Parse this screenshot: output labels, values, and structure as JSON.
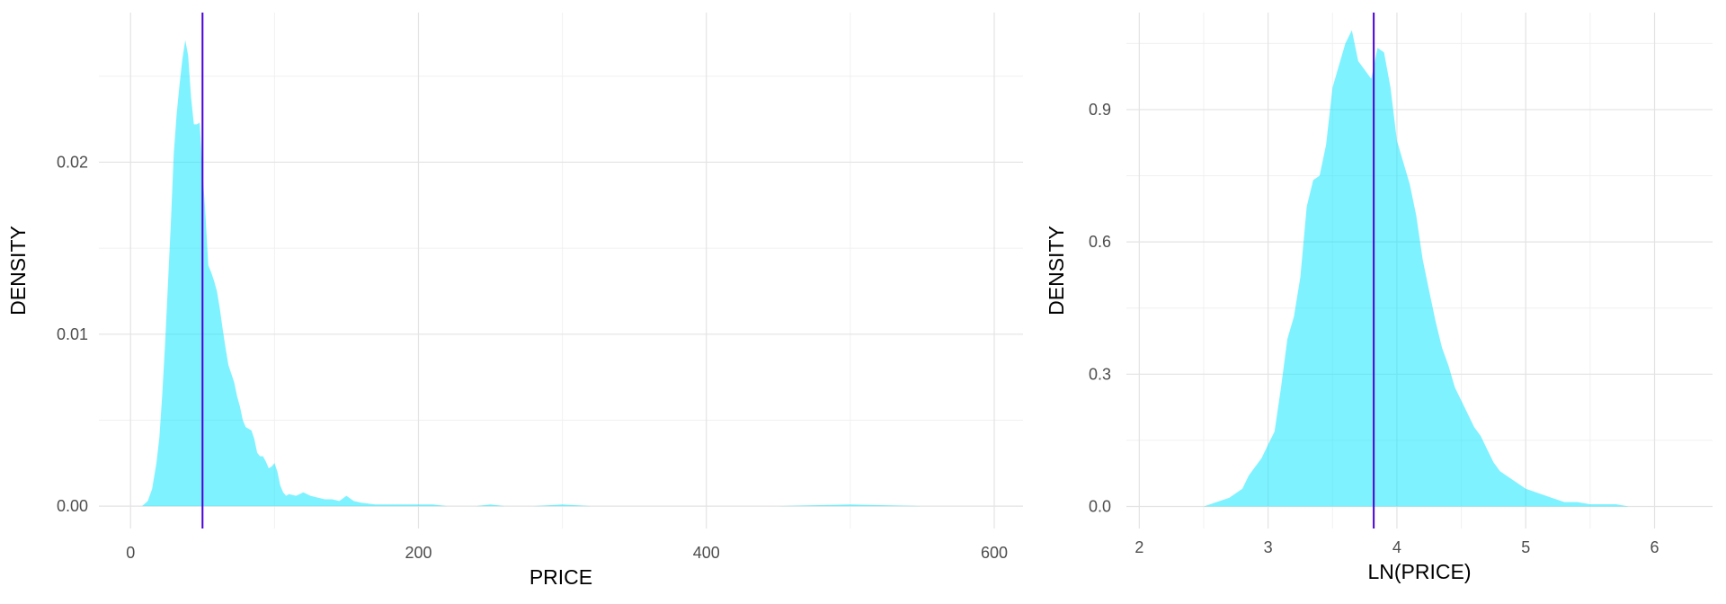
{
  "chart_data": [
    {
      "type": "area",
      "title": "",
      "xlabel": "PRICE",
      "ylabel": "DENSITY",
      "xlim": [
        -22,
        620
      ],
      "ylim": [
        -0.0013,
        0.0287
      ],
      "x_ticks": [
        0,
        200,
        400,
        600
      ],
      "y_ticks": [
        0.0,
        0.01,
        0.02
      ],
      "x_tick_labels": [
        "0",
        "200",
        "400",
        "600"
      ],
      "y_tick_labels": [
        "0.00",
        "0.01",
        "0.02"
      ],
      "grid": true,
      "fill_color": "#00e5ff",
      "vline": {
        "x": 50,
        "color": "#4b00d9"
      },
      "series": [
        {
          "x": [
            8,
            12,
            15,
            18,
            20,
            22,
            24,
            26,
            28,
            30,
            32,
            34,
            36,
            38,
            40,
            42,
            44,
            46,
            48,
            50,
            52,
            54,
            56,
            58,
            60,
            62,
            64,
            66,
            68,
            70,
            72,
            74,
            76,
            78,
            80,
            82,
            84,
            86,
            88,
            90,
            92,
            94,
            96,
            98,
            100,
            102,
            104,
            106,
            108,
            110,
            115,
            120,
            125,
            130,
            135,
            140,
            145,
            150,
            155,
            160,
            170,
            180,
            190,
            200,
            210,
            220,
            240,
            250,
            260,
            280,
            300,
            320,
            350,
            400,
            450,
            500,
            550,
            600
          ],
          "y": [
            0.0,
            0.0003,
            0.001,
            0.0025,
            0.004,
            0.0065,
            0.0095,
            0.013,
            0.0165,
            0.0205,
            0.0228,
            0.0245,
            0.026,
            0.0271,
            0.0262,
            0.0238,
            0.0222,
            0.0222,
            0.0223,
            0.0195,
            0.017,
            0.014,
            0.0136,
            0.0131,
            0.0125,
            0.0115,
            0.0103,
            0.0092,
            0.0082,
            0.0077,
            0.0072,
            0.0064,
            0.0058,
            0.005,
            0.0046,
            0.0045,
            0.0044,
            0.0039,
            0.0031,
            0.0029,
            0.0029,
            0.0026,
            0.0022,
            0.0023,
            0.0025,
            0.002,
            0.0012,
            0.0008,
            0.0006,
            0.0007,
            0.0006,
            0.0008,
            0.0006,
            0.0005,
            0.0004,
            0.0004,
            0.0003,
            0.0006,
            0.0003,
            0.0002,
            0.0001,
            0.0001,
            0.0001,
            0.0001,
            0.0001,
            0.0,
            0.0,
            0.0001,
            0.0,
            0.0,
            0.0001,
            0.0,
            0.0,
            0.0,
            0.0,
            0.0001,
            0.0,
            0.0
          ]
        }
      ]
    },
    {
      "type": "area",
      "title": "",
      "xlabel": "LN(PRICE)",
      "ylabel": "DENSITY",
      "xlim": [
        1.9,
        6.45
      ],
      "ylim": [
        -0.05,
        1.12
      ],
      "x_ticks": [
        2,
        3,
        4,
        5,
        6
      ],
      "y_ticks": [
        0.0,
        0.3,
        0.6,
        0.9
      ],
      "x_tick_labels": [
        "2",
        "3",
        "4",
        "5",
        "6"
      ],
      "y_tick_labels": [
        "0.0",
        "0.3",
        "0.6",
        "0.9"
      ],
      "grid": true,
      "fill_color": "#00e5ff",
      "vline": {
        "x": 3.82,
        "color": "#4b00d9"
      },
      "series": [
        {
          "x": [
            2.5,
            2.6,
            2.7,
            2.8,
            2.85,
            2.9,
            2.95,
            3.0,
            3.05,
            3.1,
            3.15,
            3.2,
            3.25,
            3.3,
            3.35,
            3.4,
            3.45,
            3.5,
            3.55,
            3.6,
            3.65,
            3.7,
            3.75,
            3.8,
            3.85,
            3.9,
            3.95,
            4.0,
            4.05,
            4.1,
            4.15,
            4.2,
            4.25,
            4.3,
            4.35,
            4.4,
            4.45,
            4.5,
            4.55,
            4.6,
            4.65,
            4.7,
            4.75,
            4.8,
            4.85,
            4.9,
            5.0,
            5.1,
            5.2,
            5.3,
            5.4,
            5.5,
            5.6,
            5.7,
            5.8,
            5.9,
            6.0,
            6.1,
            6.2,
            6.3
          ],
          "y": [
            0.0,
            0.01,
            0.02,
            0.04,
            0.07,
            0.09,
            0.11,
            0.14,
            0.17,
            0.27,
            0.38,
            0.43,
            0.52,
            0.68,
            0.74,
            0.75,
            0.82,
            0.95,
            1.0,
            1.05,
            1.08,
            1.01,
            0.99,
            0.97,
            1.04,
            1.03,
            0.95,
            0.83,
            0.78,
            0.73,
            0.66,
            0.56,
            0.49,
            0.42,
            0.36,
            0.32,
            0.27,
            0.24,
            0.21,
            0.18,
            0.16,
            0.13,
            0.1,
            0.08,
            0.07,
            0.06,
            0.04,
            0.03,
            0.02,
            0.01,
            0.01,
            0.005,
            0.005,
            0.005,
            0.0,
            0.0,
            0.0,
            0.0,
            0.0,
            0.0
          ]
        }
      ]
    }
  ]
}
